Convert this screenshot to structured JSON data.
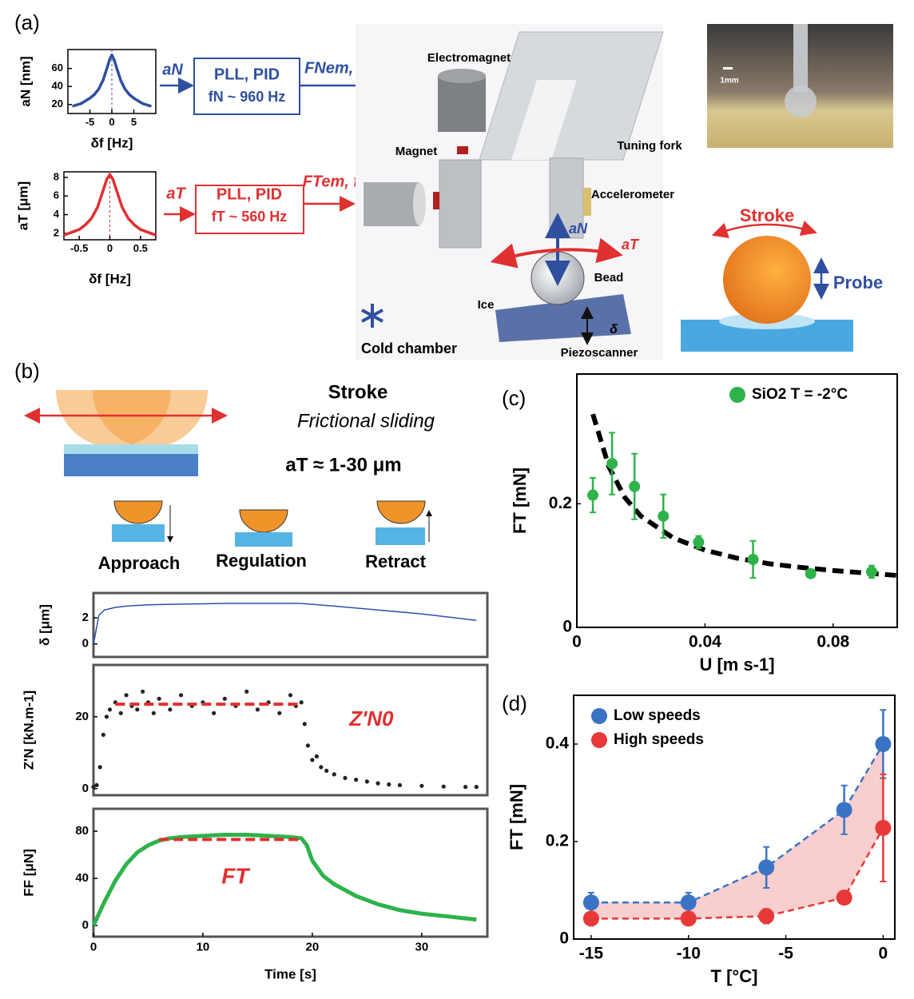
{
  "diagram": {
    "panel_labels": {
      "a": "(a)",
      "b": "(b)",
      "c": "(c)",
      "d": "(d)"
    },
    "panel_a": {
      "normal_input": "aN",
      "normal_box_1": "PLL, PID",
      "normal_box_2": "fN ~ 960 Hz",
      "normal_output": "FNem, fN",
      "tangential_input": "aT",
      "tangential_box_1": "PLL, PID",
      "tangential_box_2": "fT ~ 560 Hz",
      "tangential_output": "FTem, fT",
      "electromagnet": "Electromagnet",
      "magnet": "Magnet",
      "tuning_fork": "Tuning fork",
      "accelerometer": "Accelerometer",
      "arrow_normal": "aN",
      "arrow_tangential": "aT",
      "bead": "Bead",
      "ice": "Ice",
      "delta": "δ",
      "piezoscanner": "Piezoscanner",
      "cold_chamber": "Cold chamber",
      "scale_bar": "1mm",
      "stroke": "Stroke",
      "probe": "Probe"
    },
    "panel_b": {
      "title": "Stroke",
      "subtitle": "Frictional sliding",
      "amplitude": "aT ≈ 1-30 μm",
      "approach": "Approach",
      "regulation": "Regulation",
      "retract": "Retract"
    }
  },
  "chart_data": [
    {
      "type": "line",
      "xlabel": "δf [Hz]",
      "ylabel": "aN [nm]",
      "color": "#2f4f9f",
      "x": [
        -9,
        -7,
        -5,
        -4,
        -3,
        -2,
        -1,
        -0.5,
        0,
        0.5,
        1,
        2,
        3,
        4,
        5,
        7,
        9
      ],
      "values": [
        18,
        21,
        27,
        31,
        37,
        47,
        62,
        70,
        75,
        70,
        62,
        47,
        37,
        31,
        27,
        21,
        18
      ],
      "xlim": [
        -10,
        10
      ],
      "ylim": [
        10,
        81
      ],
      "xticks": [
        -5,
        0,
        5
      ],
      "yticks": [
        20,
        40,
        60
      ]
    },
    {
      "type": "line",
      "xlabel": "δf [Hz]",
      "ylabel": "aT [μm]",
      "color": "#e03030",
      "x": [
        -0.75,
        -0.5,
        -0.4,
        -0.3,
        -0.2,
        -0.1,
        -0.05,
        0,
        0.05,
        0.1,
        0.2,
        0.3,
        0.4,
        0.5,
        0.75
      ],
      "values": [
        1.8,
        2.4,
        2.9,
        3.6,
        4.8,
        6.8,
        7.8,
        8.3,
        7.8,
        6.8,
        4.8,
        3.6,
        2.9,
        2.4,
        1.8
      ],
      "xlim": [
        -0.75,
        0.75
      ],
      "ylim": [
        1.3,
        8.6
      ],
      "xticks": [
        -0.5,
        0,
        0.5
      ],
      "yticks": [
        2,
        4,
        6,
        8
      ]
    },
    {
      "type": "line",
      "ylabel": "δ [μm]",
      "color": "#2f4fb0",
      "x": [
        0,
        0.5,
        1,
        2,
        3,
        5,
        8,
        12,
        16,
        19,
        22,
        26,
        30,
        35
      ],
      "values": [
        0,
        2.2,
        2.6,
        2.8,
        2.9,
        3.0,
        3.05,
        3.1,
        3.1,
        3.1,
        2.9,
        2.6,
        2.3,
        1.8
      ],
      "xlim": [
        0,
        36
      ],
      "ylim": [
        -1,
        3.9
      ],
      "yticks": [
        0,
        2
      ]
    },
    {
      "type": "scatter",
      "ylabel": "Z'N [kN.m-1]",
      "color": "#222222",
      "x": [
        0,
        0.3,
        0.6,
        0.9,
        1.2,
        1.5,
        2,
        2.5,
        3,
        3.5,
        4,
        4.5,
        5,
        5.5,
        6,
        7,
        8,
        9,
        10,
        11,
        12,
        13,
        14,
        15,
        16,
        17,
        18,
        18.5,
        19,
        19.3,
        19.6,
        20,
        20.4,
        20.8,
        21.3,
        22,
        23,
        24,
        25,
        26,
        27,
        28,
        30,
        32,
        34,
        35
      ],
      "values": [
        0.5,
        1,
        6,
        15,
        20,
        22,
        24,
        21,
        26,
        23,
        22,
        27,
        24,
        21,
        25,
        22,
        26,
        23,
        24,
        21,
        25,
        23,
        27,
        22,
        24,
        21,
        26,
        23,
        24,
        18,
        12,
        8,
        9,
        6,
        5,
        4,
        3,
        2.5,
        2,
        1.5,
        1.2,
        1,
        0.8,
        0.6,
        0.5,
        0.5
      ],
      "reference": {
        "label": "Z'N0",
        "value": 23.5,
        "x": [
          2,
          19
        ],
        "color": "#e03030"
      },
      "xlim": [
        0,
        36
      ],
      "ylim": [
        -1.8,
        34.4
      ],
      "yticks": [
        0,
        20
      ]
    },
    {
      "type": "line",
      "xlabel": "Time [s]",
      "ylabel": "FF [μN]",
      "color": "#2db34a",
      "x": [
        0,
        1,
        2,
        3,
        4,
        5,
        6,
        7,
        8,
        10,
        12,
        14,
        16,
        18,
        19,
        19.5,
        20,
        21,
        22,
        24,
        26,
        28,
        30,
        32,
        34,
        35
      ],
      "values": [
        0,
        20,
        38,
        52,
        62,
        68,
        72,
        74,
        75,
        76,
        77,
        77,
        76,
        75,
        74,
        68,
        55,
        42,
        35,
        25,
        18,
        13,
        10,
        8,
        6,
        5
      ],
      "reference": {
        "label": "FT",
        "value": 73,
        "x": [
          6,
          19
        ],
        "color": "#e03030"
      },
      "xlim": [
        0,
        36
      ],
      "ylim": [
        -9.5,
        99
      ],
      "xticks": [
        0,
        10,
        20,
        30
      ],
      "yticks": [
        0,
        40,
        80
      ]
    },
    {
      "type": "scatter",
      "xlabel": "U [m s-1]",
      "ylabel": "FT [mN]",
      "series": [
        {
          "name": "SiO2 T = -2°C",
          "color": "#2db34a",
          "x": [
            0.005,
            0.011,
            0.018,
            0.027,
            0.038,
            0.055,
            0.073,
            0.092
          ],
          "values": [
            0.214,
            0.265,
            0.228,
            0.18,
            0.138,
            0.11,
            0.087,
            0.09
          ],
          "errors": [
            0.028,
            0.05,
            0.053,
            0.035,
            0.01,
            0.03,
            0.005,
            0.01
          ]
        }
      ],
      "fit": {
        "color": "#000000",
        "x": [
          0.005,
          0.01,
          0.015,
          0.02,
          0.03,
          0.04,
          0.05,
          0.06,
          0.07,
          0.08,
          0.09,
          0.1
        ],
        "values": [
          0.345,
          0.26,
          0.21,
          0.18,
          0.145,
          0.125,
          0.112,
          0.103,
          0.097,
          0.092,
          0.088,
          0.084
        ]
      },
      "legend": "upper right",
      "xlim": [
        0,
        0.1
      ],
      "ylim": [
        0,
        0.41
      ],
      "xticks": [
        0,
        0.04,
        0.08
      ],
      "yticks": [
        0,
        0.2
      ]
    },
    {
      "type": "scatter",
      "xlabel": "T [°C]",
      "ylabel": "FT [mN]",
      "series": [
        {
          "name": "Low speeds",
          "color": "#3b73c4",
          "line_style": "dashed",
          "x": [
            -15,
            -10,
            -6,
            -2,
            0
          ],
          "values": [
            0.075,
            0.075,
            0.147,
            0.265,
            0.4
          ],
          "errors": [
            0.02,
            0.02,
            0.042,
            0.05,
            0.07
          ]
        },
        {
          "name": "High speeds",
          "color": "#e83838",
          "line_style": "dashed",
          "x": [
            -15,
            -10,
            -6,
            -2,
            0
          ],
          "values": [
            0.042,
            0.042,
            0.047,
            0.085,
            0.228
          ],
          "errors": [
            0.01,
            0.01,
            0.015,
            0.01,
            0.11
          ]
        }
      ],
      "fill_between": "#f6c2c2",
      "legend": "upper left",
      "xlim": [
        -15.9,
        0.6
      ],
      "ylim": [
        0,
        0.5
      ],
      "xticks": [
        -15,
        -10,
        -5,
        0
      ],
      "yticks": [
        0,
        0.2,
        0.4
      ]
    }
  ]
}
